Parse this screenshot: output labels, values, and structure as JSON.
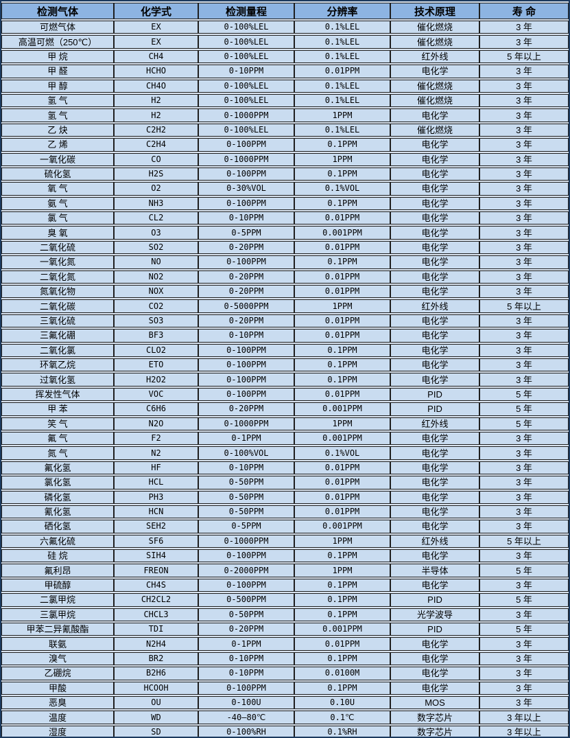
{
  "columns": [
    "检测气体",
    "化学式",
    "检测量程",
    "分辨率",
    "技术原理",
    "寿 命"
  ],
  "rows": [
    [
      "可燃气体",
      "EX",
      "0-100%LEL",
      "0.1%LEL",
      "催化燃烧",
      "3 年"
    ],
    [
      "高温可燃（250℃）",
      "EX",
      "0-100%LEL",
      "0.1%LEL",
      "催化燃烧",
      "3 年"
    ],
    [
      "甲 烷",
      "CH4",
      "0-100%LEL",
      "0.1%LEL",
      "红外线",
      "5 年以上"
    ],
    [
      "甲 醛",
      "HCHO",
      "0-10PPM",
      "0.01PPM",
      "电化学",
      "3 年"
    ],
    [
      "甲 醇",
      "CH4O",
      "0-100%LEL",
      "0.1%LEL",
      "催化燃烧",
      "3 年"
    ],
    [
      "氢 气",
      "H2",
      "0-100%LEL",
      "0.1%LEL",
      "催化燃烧",
      "3 年"
    ],
    [
      "氢 气",
      "H2",
      "0-1000PPM",
      "1PPM",
      "电化学",
      "3 年"
    ],
    [
      "乙 炔",
      "C2H2",
      "0-100%LEL",
      "0.1%LEL",
      "催化燃烧",
      "3 年"
    ],
    [
      "乙 烯",
      "C2H4",
      "0-100PPM",
      "0.1PPM",
      "电化学",
      "3 年"
    ],
    [
      "一氧化碳",
      "CO",
      "0-1000PPM",
      "1PPM",
      "电化学",
      "3 年"
    ],
    [
      "硫化氢",
      "H2S",
      "0-100PPM",
      "0.1PPM",
      "电化学",
      "3 年"
    ],
    [
      "氧 气",
      "O2",
      "0-30%VOL",
      "0.1%VOL",
      "电化学",
      "3 年"
    ],
    [
      "氨 气",
      "NH3",
      "0-100PPM",
      "0.1PPM",
      "电化学",
      "3 年"
    ],
    [
      "氯 气",
      "CL2",
      "0-10PPM",
      "0.01PPM",
      "电化学",
      "3 年"
    ],
    [
      "臭 氧",
      "O3",
      "0-5PPM",
      "0.001PPM",
      "电化学",
      "3 年"
    ],
    [
      "二氧化硫",
      "SO2",
      "0-20PPM",
      "0.01PPM",
      "电化学",
      "3 年"
    ],
    [
      "一氧化氮",
      "NO",
      "0-100PPM",
      "0.1PPM",
      "电化学",
      "3 年"
    ],
    [
      "二氧化氮",
      "NO2",
      "0-20PPM",
      "0.01PPM",
      "电化学",
      "3 年"
    ],
    [
      "氮氧化物",
      "NOX",
      "0-20PPM",
      "0.01PPM",
      "电化学",
      "3 年"
    ],
    [
      "二氧化碳",
      "CO2",
      "0-5000PPM",
      "1PPM",
      "红外线",
      "5 年以上"
    ],
    [
      "三氧化硫",
      "SO3",
      "0-20PPM",
      "0.01PPM",
      "电化学",
      "3 年"
    ],
    [
      "三氟化硼",
      "BF3",
      "0-10PPM",
      "0.01PPM",
      "电化学",
      "3 年"
    ],
    [
      "二氧化氯",
      "CLO2",
      "0-100PPM",
      "0.1PPM",
      "电化学",
      "3 年"
    ],
    [
      "环氧乙烷",
      "ETO",
      "0-100PPM",
      "0.1PPM",
      "电化学",
      "3 年"
    ],
    [
      "过氧化氢",
      "H2O2",
      "0-100PPM",
      "0.1PPM",
      "电化学",
      "3 年"
    ],
    [
      "挥发性气体",
      "VOC",
      "0-100PPM",
      "0.01PPM",
      "PID",
      "5 年"
    ],
    [
      "甲 苯",
      "C6H6",
      "0-20PPM",
      "0.001PPM",
      "PID",
      "5 年"
    ],
    [
      "笑 气",
      "N2O",
      "0-1000PPM",
      "1PPM",
      "红外线",
      "5 年"
    ],
    [
      "氟 气",
      "F2",
      "0-1PPM",
      "0.001PPM",
      "电化学",
      "3 年"
    ],
    [
      "氮 气",
      "N2",
      "0-100%VOL",
      "0.1%VOL",
      "电化学",
      "3 年"
    ],
    [
      "氟化氢",
      "HF",
      "0-10PPM",
      "0.01PPM",
      "电化学",
      "3 年"
    ],
    [
      "氯化氢",
      "HCL",
      "0-50PPM",
      "0.01PPM",
      "电化学",
      "3 年"
    ],
    [
      "磷化氢",
      "PH3",
      "0-50PPM",
      "0.01PPM",
      "电化学",
      "3 年"
    ],
    [
      "氰化氢",
      "HCN",
      "0-50PPM",
      "0.01PPM",
      "电化学",
      "3 年"
    ],
    [
      "硒化氢",
      "SEH2",
      "0-5PPM",
      "0.001PPM",
      "电化学",
      "3 年"
    ],
    [
      "六氟化硫",
      "SF6",
      "0-1000PPM",
      "1PPM",
      "红外线",
      "5 年以上"
    ],
    [
      "硅 烷",
      "SIH4",
      "0-100PPM",
      "0.1PPM",
      "电化学",
      "3 年"
    ],
    [
      "氟利昂",
      "FREON",
      "0-2000PPM",
      "1PPM",
      "半导体",
      "5 年"
    ],
    [
      "甲硫醇",
      "CH4S",
      "0-100PPM",
      "0.1PPM",
      "电化学",
      "3 年"
    ],
    [
      "二氯甲烷",
      "CH2CL2",
      "0-500PPM",
      "0.1PPM",
      "PID",
      "5 年"
    ],
    [
      "三氯甲烷",
      "CHCL3",
      "0-50PPM",
      "0.1PPM",
      "光学波导",
      "3 年"
    ],
    [
      "甲苯二异氰酸酯",
      "TDI",
      "0-20PPM",
      "0.001PPM",
      "PID",
      "5 年"
    ],
    [
      "联氨",
      "N2H4",
      "0-1PPM",
      "0.01PPM",
      "电化学",
      "3 年"
    ],
    [
      "溴气",
      "BR2",
      "0-10PPM",
      "0.1PPM",
      "电化学",
      "3 年"
    ],
    [
      "乙硼烷",
      "B2H6",
      "0-10PPM",
      "0.0100M",
      "电化学",
      "3 年"
    ],
    [
      "甲酸",
      "HCOOH",
      "0-100PPM",
      "0.1PPM",
      "电化学",
      "3 年"
    ],
    [
      "恶臭",
      "OU",
      "0-100U",
      "0.10U",
      "MOS",
      "3 年"
    ],
    [
      "温度",
      "WD",
      "-40—80℃",
      "0.1℃",
      "数字芯片",
      "3 年以上"
    ],
    [
      "湿度",
      "SD",
      "0-100%RH",
      "0.1%RH",
      "数字芯片",
      "3 年以上"
    ]
  ],
  "colors": {
    "header_bg": "#8db4e2",
    "row_bg": "#c9dcf0",
    "gap_bg": "#dbe5f1",
    "cell_border": "#1f1f1f",
    "outer_border": "#1c3a5e",
    "text": "#000000"
  }
}
